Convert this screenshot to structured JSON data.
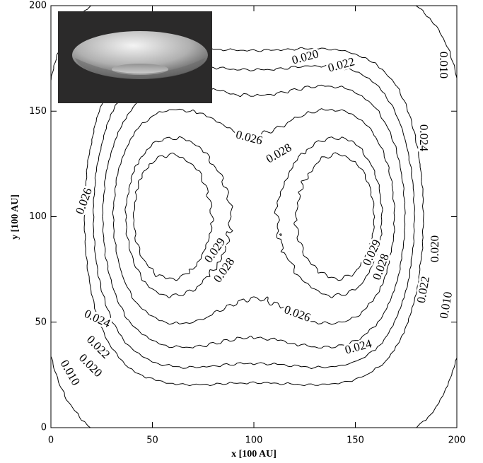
{
  "chart_data": {
    "type": "contour",
    "xlabel": "x [100 AU]",
    "ylabel": "y [100 AU]",
    "xlim": [
      0,
      200
    ],
    "ylim": [
      0,
      200
    ],
    "xticks": [
      0,
      50,
      100,
      150,
      200
    ],
    "yticks": [
      0,
      50,
      100,
      150,
      200
    ],
    "contour_levels": [
      {
        "value": 0.01,
        "label": "0.010"
      },
      {
        "value": 0.02,
        "label": "0.020"
      },
      0.022,
      0.024,
      0.026,
      0.028,
      0.029
    ],
    "color": "#000000"
  }
}
